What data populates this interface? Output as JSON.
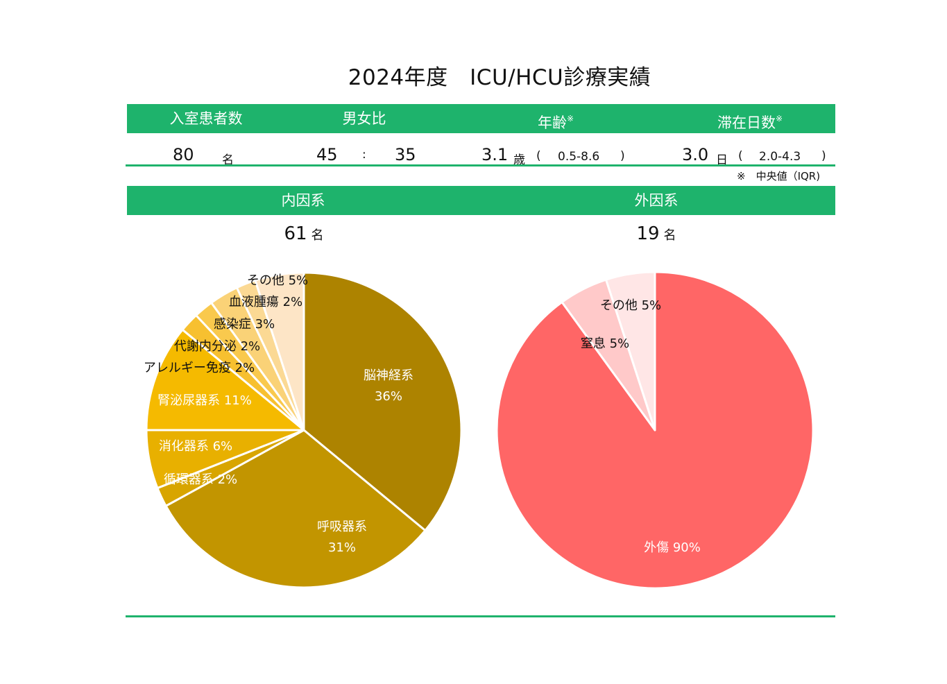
{
  "title": "2024年度　ICU/HCU診療実績",
  "summary": {
    "headers": {
      "patients": "入室患者数",
      "sex_ratio": "男女比",
      "age": "年齢",
      "stay": "滞在日数",
      "mark": "※"
    },
    "patients": {
      "value": "80",
      "unit": "名"
    },
    "sex_ratio": {
      "male": "45",
      "sep": ":",
      "female": "35"
    },
    "age": {
      "value": "3.1",
      "unit": "歳",
      "open": "(",
      "iqr": "0.5-8.6",
      "close": ")"
    },
    "stay": {
      "value": "3.0",
      "unit": "日",
      "open": "(",
      "iqr": "2.0-4.3",
      "close": ")"
    },
    "footnote": "※　中央値（IQR)"
  },
  "sections": {
    "internal": {
      "label": "内因系",
      "count": "61",
      "unit": "名"
    },
    "external": {
      "label": "外因系",
      "count": "19",
      "unit": "名"
    }
  },
  "chart_data": [
    {
      "type": "pie",
      "title": "",
      "slices": [
        {
          "label": "脳神経系",
          "pct_label": "36%",
          "value": 36,
          "color": "#ad8300"
        },
        {
          "label": "呼吸器系",
          "pct_label": "31%",
          "value": 31,
          "color": "#c29500"
        },
        {
          "label": "循環器系",
          "pct_label": "2%",
          "value": 2,
          "color": "#d8a500"
        },
        {
          "label": "消化器系",
          "pct_label": "6%",
          "value": 6,
          "color": "#e8b000"
        },
        {
          "label": "腎泌尿器系",
          "pct_label": "11%",
          "value": 11,
          "color": "#f5ba00"
        },
        {
          "label": "アレルギー免疫",
          "pct_label": "2%",
          "value": 2,
          "color": "#f7c030"
        },
        {
          "label": "代謝内分泌",
          "pct_label": "2%",
          "value": 2,
          "color": "#f9c94d"
        },
        {
          "label": "感染症",
          "pct_label": "3%",
          "value": 3,
          "color": "#fad277"
        },
        {
          "label": "血液腫瘍",
          "pct_label": "2%",
          "value": 2,
          "color": "#fbd994"
        },
        {
          "label": "その他",
          "pct_label": "5%",
          "value": 5,
          "color": "#fde5c6"
        }
      ]
    },
    {
      "type": "pie",
      "title": "",
      "slices": [
        {
          "label": "外傷",
          "pct_label": "90%",
          "value": 90,
          "color": "#ff6666"
        },
        {
          "label": "窒息",
          "pct_label": "5%",
          "value": 5,
          "color": "#ffc9c9"
        },
        {
          "label": "その他",
          "pct_label": "5%",
          "value": 5,
          "color": "#ffe6e6"
        }
      ]
    }
  ]
}
